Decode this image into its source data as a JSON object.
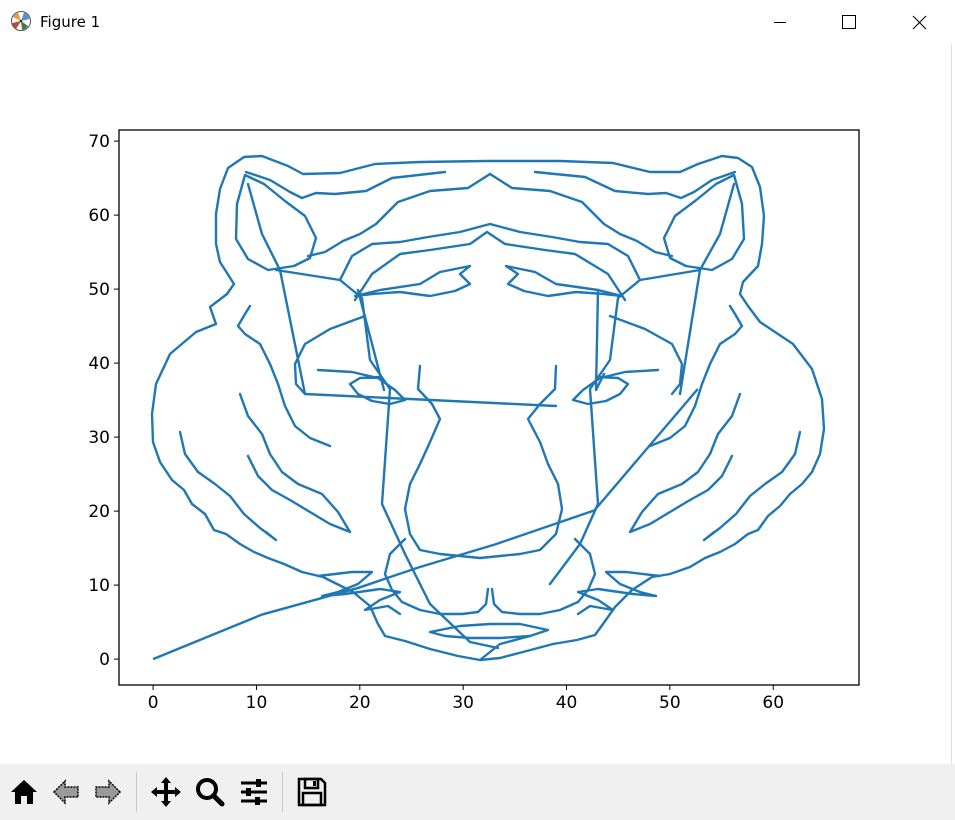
{
  "window": {
    "title": "Figure 1",
    "controls": {
      "minimize": "minimize",
      "maximize": "maximize",
      "close": "close"
    }
  },
  "toolbar": {
    "buttons": [
      {
        "name": "home-button",
        "icon": "home-icon"
      },
      {
        "name": "back-button",
        "icon": "arrow-left-icon"
      },
      {
        "name": "forward-button",
        "icon": "arrow-right-icon"
      },
      {
        "name": "pan-button",
        "icon": "move-icon"
      },
      {
        "name": "zoom-button",
        "icon": "magnifier-icon"
      },
      {
        "name": "configure-subplots-button",
        "icon": "sliders-icon"
      },
      {
        "name": "save-button",
        "icon": "floppy-disk-icon"
      }
    ]
  },
  "chart_data": {
    "type": "line",
    "title": "",
    "xlabel": "",
    "ylabel": "",
    "xlim": [
      -3.3,
      68.3
    ],
    "ylim": [
      -3.5,
      71.5
    ],
    "xticks": [
      0,
      10,
      20,
      30,
      40,
      50,
      60
    ],
    "yticks": [
      0,
      10,
      20,
      30,
      40,
      50,
      60,
      70
    ],
    "grid": false,
    "color": "#1f77b4",
    "series": [
      {
        "x": [
          0,
          10.5,
          19.8,
          25.7,
          33.1,
          42.7,
          52.7
        ],
        "y": [
          0,
          6.0,
          9.6,
          12.4,
          15.5,
          20.1,
          36.5
        ]
      }
    ]
  }
}
